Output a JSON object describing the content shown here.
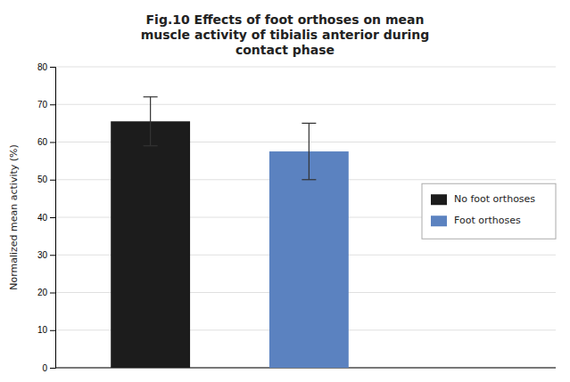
{
  "chart_data": {
    "type": "bar",
    "title": "Fig.10 Effects of foot orthoses on mean\nmuscle activity of tibialis anterior during\ncontact phase",
    "ylabel": "Normalized mean activity (%)",
    "categories": [
      "No foot orthoses",
      "Foot orthoses"
    ],
    "values": [
      65.5,
      57.5
    ],
    "errors": [
      6.5,
      7.5
    ],
    "colors": [
      "#1c1c1c",
      "#5b82c0"
    ],
    "ylim": [
      0,
      80
    ],
    "yticks": [
      0,
      10,
      20,
      30,
      40,
      50,
      60,
      70,
      80
    ],
    "grid": true,
    "legend": "right",
    "tick_labels": "y"
  }
}
